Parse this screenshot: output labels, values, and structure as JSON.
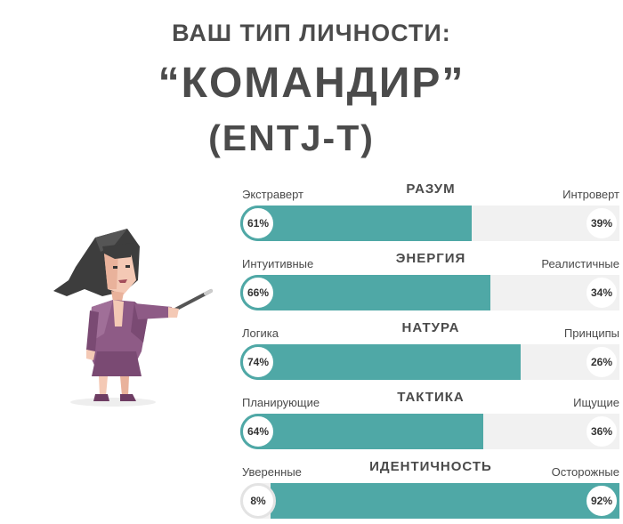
{
  "header": {
    "line1": "ВАШ ТИП ЛИЧНОСТИ:",
    "line2": "“КОМАНДИР”",
    "line3": "(ENTJ-T)"
  },
  "colors": {
    "accent": "#4fa8a6",
    "track": "#f1f1f1",
    "text": "#4a4a4a"
  },
  "illustration": {
    "icon": "commander-woman-with-pointer"
  },
  "traits": [
    {
      "title": "РАЗУМ",
      "left_label": "Экстраверт",
      "right_label": "Интроверт",
      "left_pct": "61%",
      "right_pct": "39%",
      "left_value": 61,
      "dominant": "left"
    },
    {
      "title": "ЭНЕРГИЯ",
      "left_label": "Интуитивные",
      "right_label": "Реалистичные",
      "left_pct": "66%",
      "right_pct": "34%",
      "left_value": 66,
      "dominant": "left"
    },
    {
      "title": "НАТУРА",
      "left_label": "Логика",
      "right_label": "Принципы",
      "left_pct": "74%",
      "right_pct": "26%",
      "left_value": 74,
      "dominant": "left"
    },
    {
      "title": "ТАКТИКА",
      "left_label": "Планирующие",
      "right_label": "Ищущие",
      "left_pct": "64%",
      "right_pct": "36%",
      "left_value": 64,
      "dominant": "left"
    },
    {
      "title": "ИДЕНТИЧНОСТЬ",
      "left_label": "Уверенные",
      "right_label": "Осторожные",
      "left_pct": "8%",
      "right_pct": "92%",
      "left_value": 8,
      "dominant": "right"
    }
  ]
}
